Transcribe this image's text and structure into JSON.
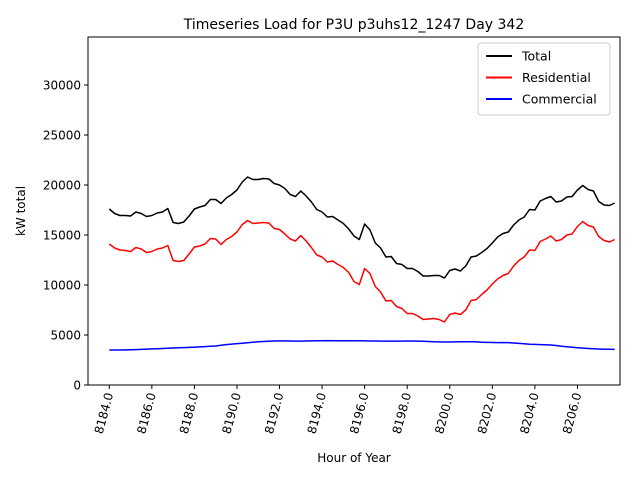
{
  "chart_data": {
    "type": "line",
    "title": "Timeseries Load for P3U p3uhs12_1247  Day 342",
    "xlabel": "Hour of Year",
    "ylabel": "kW total",
    "xlim": [
      8183.0,
      8208.0
    ],
    "ylim": [
      0,
      34800
    ],
    "grid": false,
    "legend_position": "top-right",
    "x_ticks": [
      8184,
      8186,
      8188,
      8190,
      8192,
      8194,
      8196,
      8198,
      8200,
      8202,
      8204,
      8206
    ],
    "x_tick_labels": [
      "8184.0",
      "8186.0",
      "8188.0",
      "8190.0",
      "8192.0",
      "8194.0",
      "8196.0",
      "8198.0",
      "8200.0",
      "8202.0",
      "8204.0",
      "8206.0"
    ],
    "y_ticks": [
      0,
      5000,
      10000,
      15000,
      20000,
      25000,
      30000
    ],
    "y_tick_labels": [
      "0",
      "5000",
      "10000",
      "15000",
      "20000",
      "25000",
      "30000"
    ],
    "x_start": 8184.0,
    "x_step": 0.25,
    "series": [
      {
        "name": "Total",
        "color": "#000000",
        "values": [
          17600,
          17150,
          16950,
          16950,
          16900,
          17300,
          17150,
          16850,
          16950,
          17200,
          17300,
          17650,
          16250,
          16150,
          16300,
          16900,
          17600,
          17800,
          17950,
          18550,
          18550,
          18150,
          18700,
          19050,
          19500,
          20300,
          20800,
          20550,
          20550,
          20650,
          20600,
          20150,
          20000,
          19650,
          19050,
          18850,
          19400,
          18900,
          18300,
          17550,
          17300,
          16800,
          16850,
          16500,
          16150,
          15600,
          14900,
          14550,
          16100,
          15500,
          14200,
          13700,
          12800,
          12850,
          12150,
          12050,
          11650,
          11650,
          11350,
          10900,
          10900,
          10950,
          10950,
          10700,
          11450,
          11600,
          11400,
          11900,
          12800,
          12900,
          13250,
          13650,
          14200,
          14800,
          15150,
          15300,
          16000,
          16500,
          16800,
          17550,
          17500,
          18400,
          18650,
          18850,
          18300,
          18400,
          18800,
          18850,
          19500,
          19950,
          19550,
          19400,
          18350,
          18000,
          17950,
          18200
        ]
      },
      {
        "name": "Residential",
        "color": "#ff0000",
        "values": [
          14100,
          13700,
          13500,
          13450,
          13350,
          13750,
          13600,
          13250,
          13350,
          13600,
          13700,
          13950,
          12450,
          12350,
          12450,
          13100,
          13800,
          13900,
          14100,
          14650,
          14600,
          14050,
          14550,
          14850,
          15300,
          16050,
          16450,
          16150,
          16200,
          16250,
          16200,
          15650,
          15550,
          15100,
          14600,
          14400,
          14950,
          14400,
          13750,
          13000,
          12800,
          12300,
          12400,
          12050,
          11750,
          11250,
          10350,
          10050,
          11650,
          11150,
          9850,
          9300,
          8400,
          8450,
          7850,
          7650,
          7150,
          7150,
          6900,
          6550,
          6600,
          6650,
          6550,
          6300,
          7050,
          7200,
          7050,
          7500,
          8450,
          8550,
          9050,
          9500,
          10100,
          10600,
          10950,
          11150,
          11900,
          12450,
          12800,
          13500,
          13450,
          14350,
          14600,
          14900,
          14400,
          14550,
          15000,
          15100,
          15850,
          16350,
          15950,
          15800,
          14850,
          14450,
          14300,
          14550
        ]
      },
      {
        "name": "Commercial",
        "color": "#0000ff",
        "values": [
          3500,
          3500,
          3500,
          3510,
          3520,
          3540,
          3560,
          3590,
          3610,
          3630,
          3650,
          3680,
          3700,
          3720,
          3740,
          3760,
          3780,
          3810,
          3840,
          3870,
          3900,
          3980,
          4040,
          4090,
          4140,
          4180,
          4230,
          4280,
          4320,
          4350,
          4380,
          4400,
          4410,
          4410,
          4400,
          4390,
          4390,
          4400,
          4410,
          4420,
          4430,
          4440,
          4430,
          4420,
          4420,
          4430,
          4430,
          4420,
          4410,
          4400,
          4400,
          4390,
          4390,
          4390,
          4390,
          4390,
          4400,
          4400,
          4390,
          4380,
          4350,
          4320,
          4310,
          4300,
          4300,
          4310,
          4320,
          4330,
          4330,
          4310,
          4280,
          4260,
          4250,
          4240,
          4250,
          4240,
          4200,
          4160,
          4120,
          4080,
          4060,
          4040,
          4020,
          4000,
          3950,
          3880,
          3830,
          3780,
          3730,
          3690,
          3650,
          3620,
          3600,
          3580,
          3570,
          3560
        ]
      }
    ]
  }
}
